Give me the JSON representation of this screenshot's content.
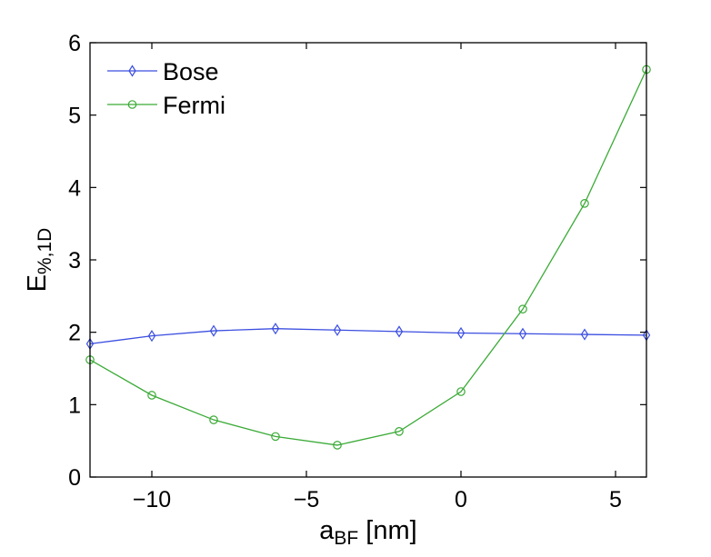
{
  "chart_data": {
    "type": "line",
    "xlabel": {
      "main": "a",
      "sub": "BF",
      "suffix": " [nm]"
    },
    "ylabel": {
      "main": "E",
      "sub": "%,1D"
    },
    "xlim": [
      -12,
      6
    ],
    "ylim": [
      0,
      6
    ],
    "xticks": [
      -10,
      -5,
      0,
      5
    ],
    "xtick_labels": [
      "−10",
      "−5",
      "0",
      "5"
    ],
    "yticks": [
      0,
      1,
      2,
      3,
      4,
      5,
      6
    ],
    "ytick_labels": [
      "0",
      "1",
      "2",
      "3",
      "4",
      "5",
      "6"
    ],
    "grid": false,
    "legend_position": "top-left",
    "x": [
      -12,
      -10,
      -8,
      -6,
      -4,
      -2,
      0,
      2,
      4,
      6
    ],
    "series": [
      {
        "name": "Bose",
        "color": "#3b4ee0",
        "marker": "diamond",
        "values": [
          1.84,
          1.95,
          2.02,
          2.05,
          2.03,
          2.01,
          1.99,
          1.98,
          1.97,
          1.96
        ]
      },
      {
        "name": "Fermi",
        "color": "#3aaa35",
        "marker": "circle",
        "values": [
          1.62,
          1.13,
          0.79,
          0.56,
          0.44,
          0.63,
          1.18,
          2.32,
          3.78,
          5.63
        ]
      }
    ]
  }
}
